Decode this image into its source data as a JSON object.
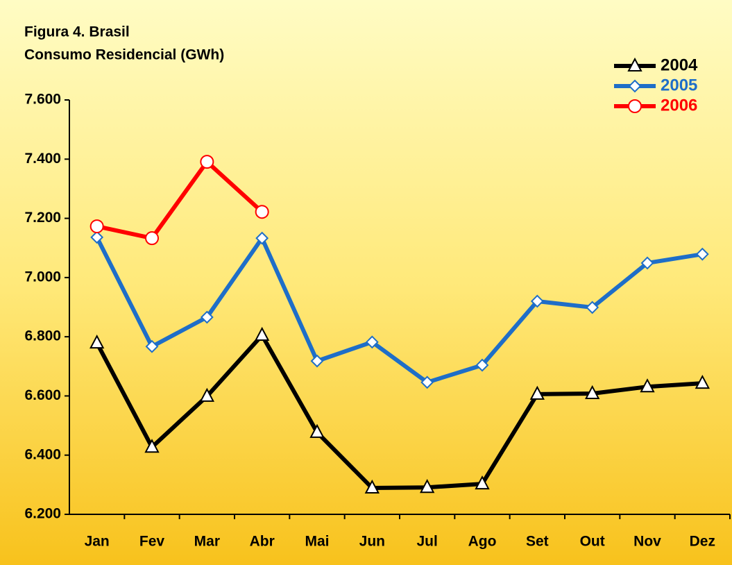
{
  "chart_data": {
    "type": "line",
    "title": "Figura 4. Brasil",
    "subtitle": "Consumo Residencial (GWh)",
    "categories": [
      "Jan",
      "Fev",
      "Mar",
      "Abr",
      "Mai",
      "Jun",
      "Jul",
      "Ago",
      "Set",
      "Out",
      "Nov",
      "Dez"
    ],
    "series": [
      {
        "name": "2004",
        "color": "#000000",
        "marker": "triangle",
        "values": [
          6779,
          6427,
          6599,
          6805,
          6477,
          6289,
          6291,
          6303,
          6606,
          6608,
          6631,
          6643
        ]
      },
      {
        "name": "2005",
        "color": "#1e6ec8",
        "marker": "diamond",
        "values": [
          7136,
          6767,
          6866,
          7133,
          6718,
          6782,
          6646,
          6704,
          6920,
          6899,
          7049,
          7079
        ]
      },
      {
        "name": "2006",
        "color": "#ff0000",
        "marker": "circle",
        "values": [
          7173,
          7133,
          7391,
          7222,
          null,
          null,
          null,
          null,
          null,
          null,
          null,
          null
        ]
      }
    ],
    "ylim": [
      6200,
      7600
    ],
    "yticks": [
      {
        "value": 6200,
        "label": "6.200"
      },
      {
        "value": 6400,
        "label": "6.400"
      },
      {
        "value": 6600,
        "label": "6.600"
      },
      {
        "value": 6800,
        "label": "6.800"
      },
      {
        "value": 7000,
        "label": "7.000"
      },
      {
        "value": 7200,
        "label": "7.200"
      },
      {
        "value": 7400,
        "label": "7.400"
      },
      {
        "value": 7600,
        "label": "7.600"
      }
    ],
    "grid": false,
    "legend": "top-right"
  }
}
